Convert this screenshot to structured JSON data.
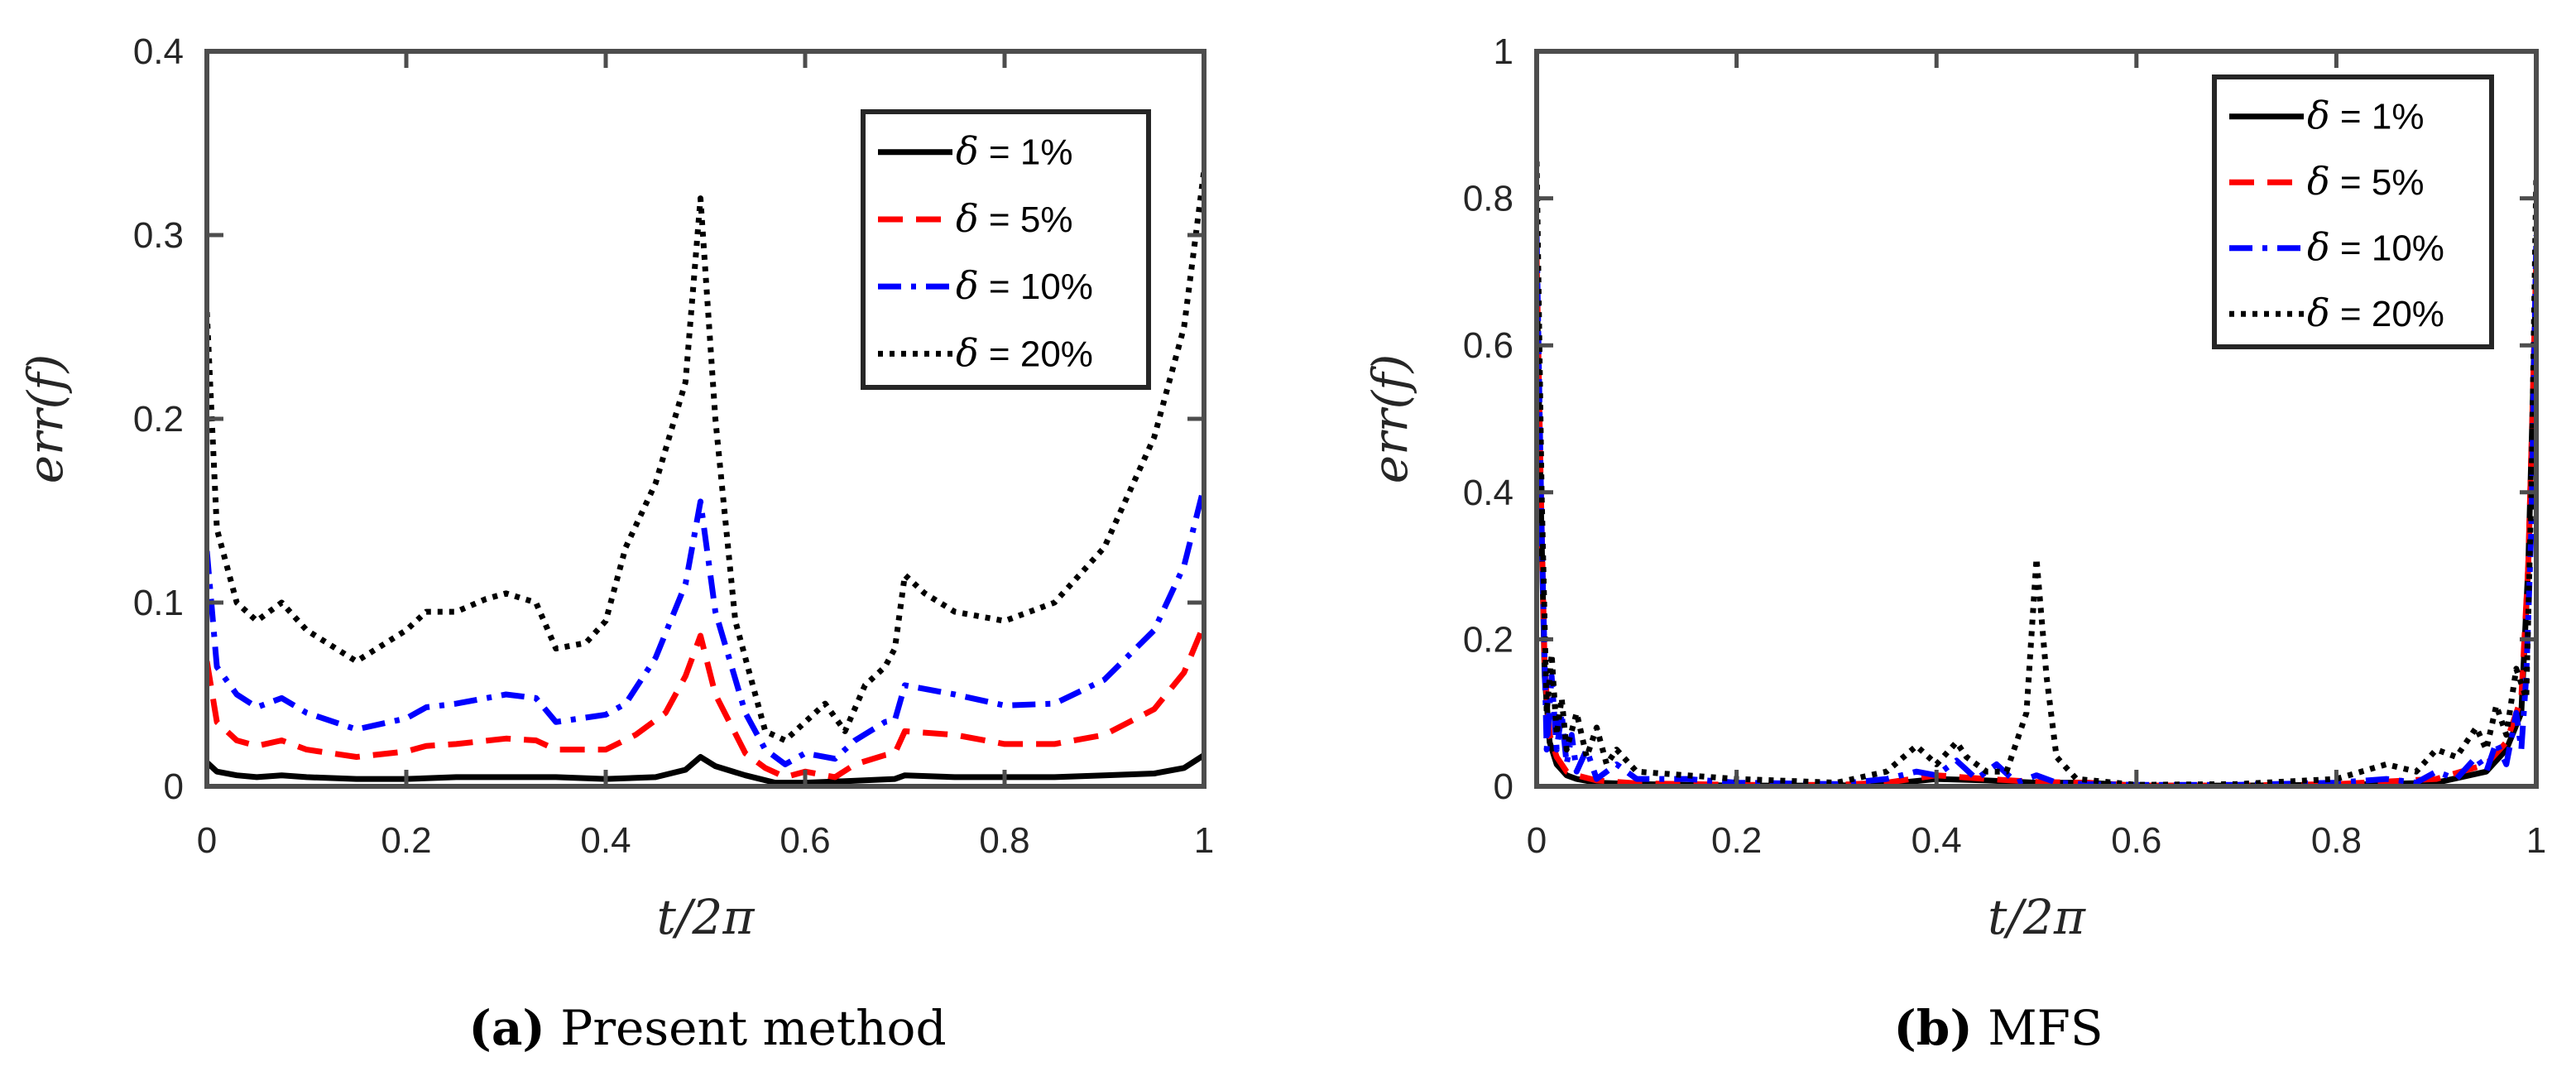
{
  "chart_data": [
    {
      "type": "line",
      "caption_letter": "(a)",
      "caption": "Present method",
      "xlabel": "t/2π",
      "ylabel": "err(f)",
      "xlim": [
        0,
        1
      ],
      "ylim": [
        0,
        0.4
      ],
      "xticks": [
        0,
        0.2,
        0.4,
        0.6,
        0.8,
        1
      ],
      "xtick_labels": [
        "0",
        "0.2",
        "0.4",
        "0.6",
        "0.8",
        "1"
      ],
      "yticks": [
        0,
        0.1,
        0.2,
        0.3,
        0.4
      ],
      "ytick_labels": [
        "0",
        "0.1",
        "0.2",
        "0.3",
        "0.4"
      ],
      "grid": false,
      "legend_position": "top-right",
      "series": [
        {
          "name_symbol": "δ",
          "name_rest": " = 1%",
          "color": "#000000",
          "style": "solid",
          "x": [
            0,
            0.01,
            0.03,
            0.05,
            0.075,
            0.1,
            0.15,
            0.2,
            0.25,
            0.3,
            0.35,
            0.4,
            0.45,
            0.48,
            0.495,
            0.51,
            0.54,
            0.57,
            0.6,
            0.65,
            0.69,
            0.7,
            0.75,
            0.8,
            0.85,
            0.9,
            0.95,
            0.98,
            1
          ],
          "y": [
            0.013,
            0.008,
            0.006,
            0.005,
            0.006,
            0.005,
            0.004,
            0.004,
            0.005,
            0.005,
            0.005,
            0.004,
            0.005,
            0.009,
            0.016,
            0.011,
            0.006,
            0.002,
            0.002,
            0.003,
            0.004,
            0.006,
            0.005,
            0.005,
            0.005,
            0.006,
            0.007,
            0.01,
            0.017
          ]
        },
        {
          "name_symbol": "δ",
          "name_rest": " = 5%",
          "color": "#ff0000",
          "style": "dashed",
          "x": [
            0,
            0.01,
            0.03,
            0.05,
            0.075,
            0.1,
            0.15,
            0.2,
            0.22,
            0.25,
            0.3,
            0.33,
            0.35,
            0.4,
            0.43,
            0.46,
            0.48,
            0.495,
            0.51,
            0.54,
            0.56,
            0.58,
            0.6,
            0.63,
            0.65,
            0.68,
            0.69,
            0.7,
            0.75,
            0.8,
            0.85,
            0.9,
            0.95,
            0.98,
            1
          ],
          "y": [
            0.068,
            0.035,
            0.025,
            0.022,
            0.025,
            0.02,
            0.016,
            0.019,
            0.022,
            0.023,
            0.026,
            0.025,
            0.02,
            0.02,
            0.028,
            0.04,
            0.06,
            0.082,
            0.05,
            0.018,
            0.01,
            0.005,
            0.008,
            0.005,
            0.012,
            0.017,
            0.018,
            0.03,
            0.028,
            0.023,
            0.023,
            0.028,
            0.042,
            0.062,
            0.088
          ]
        },
        {
          "name_symbol": "δ",
          "name_rest": " = 10%",
          "color": "#0000ff",
          "style": "dashdot",
          "x": [
            0,
            0.01,
            0.03,
            0.05,
            0.075,
            0.1,
            0.15,
            0.2,
            0.22,
            0.25,
            0.3,
            0.33,
            0.35,
            0.4,
            0.42,
            0.45,
            0.48,
            0.495,
            0.51,
            0.54,
            0.56,
            0.58,
            0.6,
            0.63,
            0.65,
            0.68,
            0.69,
            0.7,
            0.75,
            0.8,
            0.85,
            0.9,
            0.95,
            0.98,
            1
          ],
          "y": [
            0.128,
            0.065,
            0.05,
            0.043,
            0.048,
            0.04,
            0.031,
            0.037,
            0.043,
            0.045,
            0.05,
            0.048,
            0.035,
            0.039,
            0.045,
            0.07,
            0.11,
            0.155,
            0.095,
            0.04,
            0.02,
            0.012,
            0.018,
            0.015,
            0.025,
            0.035,
            0.036,
            0.055,
            0.05,
            0.044,
            0.045,
            0.058,
            0.085,
            0.12,
            0.163
          ]
        },
        {
          "name_symbol": "δ",
          "name_rest": " = 20%",
          "color": "#000000",
          "style": "dotted",
          "x": [
            0,
            0.01,
            0.03,
            0.05,
            0.075,
            0.1,
            0.15,
            0.2,
            0.22,
            0.25,
            0.28,
            0.3,
            0.33,
            0.35,
            0.38,
            0.4,
            0.42,
            0.45,
            0.48,
            0.495,
            0.51,
            0.53,
            0.56,
            0.58,
            0.6,
            0.62,
            0.64,
            0.66,
            0.68,
            0.69,
            0.7,
            0.72,
            0.75,
            0.8,
            0.85,
            0.9,
            0.95,
            0.98,
            1
          ],
          "y": [
            0.258,
            0.14,
            0.1,
            0.09,
            0.1,
            0.085,
            0.068,
            0.085,
            0.095,
            0.095,
            0.102,
            0.105,
            0.1,
            0.075,
            0.078,
            0.09,
            0.13,
            0.165,
            0.22,
            0.32,
            0.2,
            0.09,
            0.03,
            0.025,
            0.035,
            0.045,
            0.03,
            0.055,
            0.065,
            0.075,
            0.115,
            0.105,
            0.095,
            0.09,
            0.1,
            0.13,
            0.19,
            0.25,
            0.335
          ]
        }
      ]
    },
    {
      "type": "line",
      "caption_letter": "(b)",
      "caption": "MFS",
      "xlabel": "t/2π",
      "ylabel": "err(f)",
      "xlim": [
        0,
        1
      ],
      "ylim": [
        0,
        1
      ],
      "xticks": [
        0,
        0.2,
        0.4,
        0.6,
        0.8,
        1
      ],
      "xtick_labels": [
        "0",
        "0.2",
        "0.4",
        "0.6",
        "0.8",
        "1"
      ],
      "yticks": [
        0,
        0.2,
        0.4,
        0.6,
        0.8,
        1
      ],
      "ytick_labels": [
        "0",
        "0.2",
        "0.4",
        "0.6",
        "0.8",
        "1"
      ],
      "grid": false,
      "legend_position": "top-right",
      "series": [
        {
          "name_symbol": "δ",
          "name_rest": " = 1%",
          "color": "#000000",
          "style": "solid",
          "x": [
            0,
            0.004,
            0.008,
            0.013,
            0.02,
            0.03,
            0.04,
            0.06,
            0.1,
            0.2,
            0.3,
            0.35,
            0.4,
            0.45,
            0.5,
            0.55,
            0.6,
            0.7,
            0.8,
            0.9,
            0.95,
            0.97,
            0.985,
            0.992,
            0.996,
            1
          ],
          "y": [
            0.7,
            0.4,
            0.15,
            0.06,
            0.03,
            0.015,
            0.01,
            0.005,
            0.003,
            0.001,
            0.001,
            0.003,
            0.01,
            0.008,
            0.005,
            0.005,
            0.001,
            0.001,
            0.002,
            0.005,
            0.02,
            0.05,
            0.1,
            0.3,
            0.5,
            0.7
          ]
        },
        {
          "name_symbol": "δ",
          "name_rest": " = 5%",
          "color": "#ff0000",
          "style": "dashed",
          "x": [
            0,
            0.004,
            0.008,
            0.013,
            0.02,
            0.03,
            0.04,
            0.06,
            0.1,
            0.2,
            0.3,
            0.35,
            0.4,
            0.45,
            0.5,
            0.55,
            0.6,
            0.7,
            0.8,
            0.9,
            0.95,
            0.97,
            0.985,
            0.992,
            0.996,
            1
          ],
          "y": [
            0.72,
            0.42,
            0.16,
            0.07,
            0.04,
            0.02,
            0.015,
            0.008,
            0.004,
            0.002,
            0.002,
            0.005,
            0.015,
            0.01,
            0.006,
            0.005,
            0.001,
            0.001,
            0.003,
            0.01,
            0.03,
            0.06,
            0.12,
            0.3,
            0.5,
            0.72
          ]
        },
        {
          "name_symbol": "δ",
          "name_rest": " = 10%",
          "color": "#0000ff",
          "style": "dashdot",
          "x": [
            0,
            0.005,
            0.01,
            0.015,
            0.02,
            0.025,
            0.03,
            0.035,
            0.04,
            0.05,
            0.06,
            0.08,
            0.1,
            0.15,
            0.2,
            0.3,
            0.35,
            0.38,
            0.4,
            0.42,
            0.44,
            0.46,
            0.48,
            0.5,
            0.52,
            0.55,
            0.6,
            0.7,
            0.8,
            0.85,
            0.88,
            0.9,
            0.92,
            0.94,
            0.95,
            0.96,
            0.97,
            0.98,
            0.985,
            0.99,
            0.995,
            1
          ],
          "y": [
            0.75,
            0.35,
            0.05,
            0.15,
            0.05,
            0.1,
            0.03,
            0.07,
            0.02,
            0.05,
            0.01,
            0.03,
            0.01,
            0.01,
            0.005,
            0.003,
            0.01,
            0.02,
            0.015,
            0.035,
            0.01,
            0.03,
            0.005,
            0.015,
            0.005,
            0.003,
            0.002,
            0.002,
            0.005,
            0.01,
            0.005,
            0.02,
            0.01,
            0.04,
            0.02,
            0.06,
            0.03,
            0.1,
            0.05,
            0.15,
            0.35,
            0.75
          ]
        },
        {
          "name_symbol": "δ",
          "name_rest": " = 20%",
          "color": "#000000",
          "style": "dotted",
          "x": [
            0,
            0.005,
            0.01,
            0.015,
            0.02,
            0.025,
            0.03,
            0.04,
            0.05,
            0.06,
            0.07,
            0.08,
            0.1,
            0.15,
            0.2,
            0.3,
            0.35,
            0.38,
            0.4,
            0.42,
            0.43,
            0.45,
            0.47,
            0.49,
            0.5,
            0.51,
            0.52,
            0.54,
            0.6,
            0.7,
            0.8,
            0.85,
            0.88,
            0.9,
            0.92,
            0.94,
            0.95,
            0.96,
            0.97,
            0.98,
            0.99,
            0.995,
            1
          ],
          "y": [
            0.85,
            0.4,
            0.1,
            0.18,
            0.07,
            0.12,
            0.05,
            0.1,
            0.04,
            0.08,
            0.03,
            0.05,
            0.02,
            0.015,
            0.01,
            0.005,
            0.02,
            0.055,
            0.03,
            0.06,
            0.04,
            0.02,
            0.02,
            0.1,
            0.31,
            0.15,
            0.04,
            0.01,
            0.002,
            0.003,
            0.01,
            0.03,
            0.02,
            0.05,
            0.04,
            0.08,
            0.05,
            0.11,
            0.07,
            0.16,
            0.12,
            0.4,
            0.83
          ]
        }
      ]
    }
  ]
}
